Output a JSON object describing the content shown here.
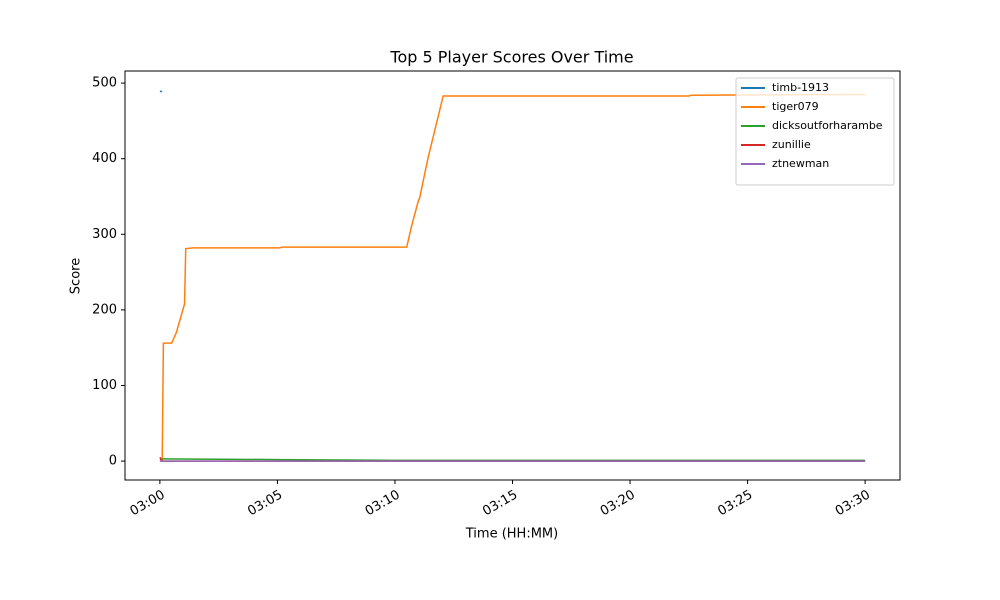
{
  "chart_data": {
    "type": "line",
    "title": "Top 5 Player Scores Over Time",
    "x_label": "Time (HH:MM)",
    "y_label": "Score",
    "xlim": [
      "02:58:31",
      "03:31:29"
    ],
    "xticks": [
      "03:00",
      "03:05",
      "03:10",
      "03:15",
      "03:20",
      "03:25",
      "03:30"
    ],
    "ylim": [
      -25,
      516
    ],
    "yticks": [
      0,
      100,
      200,
      300,
      400,
      500
    ],
    "grid": false,
    "legend": "upper right",
    "series": [
      {
        "name": "timb-1913",
        "color": "#1f77b4",
        "x": [
          "03:00:00",
          "03:00:06"
        ],
        "values": [
          489,
          489
        ]
      },
      {
        "name": "tiger079",
        "color": "#ff7f0e",
        "x": [
          "03:00:00",
          "03:00:06",
          "03:00:09",
          "03:00:30",
          "03:00:42",
          "03:01:03",
          "03:01:06",
          "03:01:24",
          "03:05:06",
          "03:05:12",
          "03:10:30",
          "03:10:42",
          "03:11:00",
          "03:11:03",
          "03:11:24",
          "03:12:03",
          "03:22:30",
          "03:22:36",
          "03:30:00"
        ],
        "values": [
          2,
          2,
          156,
          156,
          170,
          208,
          281,
          282,
          282,
          283,
          283,
          310,
          345,
          348,
          400,
          483,
          483,
          484,
          485
        ]
      },
      {
        "name": "dicksoutforharambe",
        "color": "#2ca02c",
        "x": [
          "03:00:06",
          "03:05:00",
          "03:10:00",
          "03:30:00"
        ],
        "values": [
          3,
          2,
          1,
          1
        ]
      },
      {
        "name": "zunillie",
        "color": "#d62728",
        "x": [
          "03:00:00",
          "03:00:06",
          "03:30:00"
        ],
        "values": [
          5,
          0,
          0
        ]
      },
      {
        "name": "ztnewman",
        "color": "#9467bd",
        "x": [
          "03:00:00",
          "03:30:00"
        ],
        "values": [
          0,
          0
        ]
      }
    ]
  }
}
